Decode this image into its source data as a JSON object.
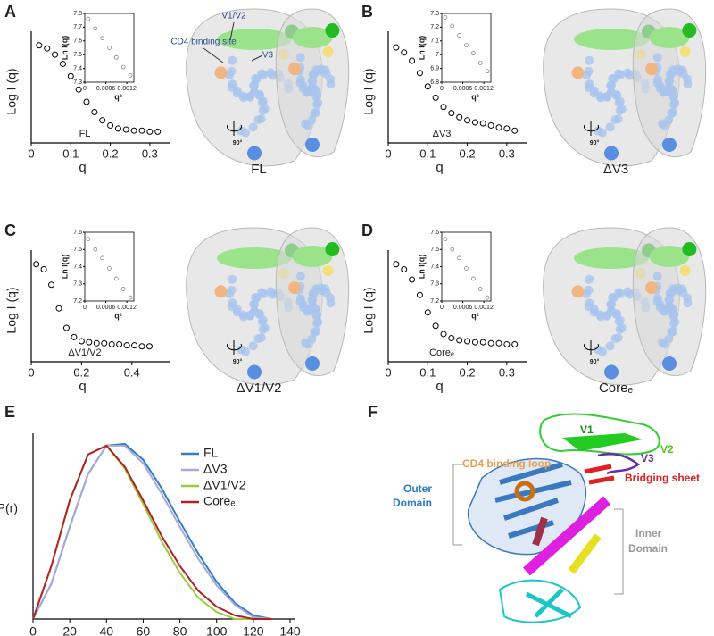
{
  "chart_data": [
    {
      "type": "scatter",
      "panel": "A",
      "x_label": "q",
      "y_label": "Log I (q)",
      "sample_label": "FL",
      "model_label": "FL",
      "rotation_label": "90°",
      "annotations": [
        "CD4 binding site",
        "V1/V2",
        "V3"
      ],
      "x": [
        0.02,
        0.04,
        0.06,
        0.08,
        0.1,
        0.12,
        0.14,
        0.16,
        0.18,
        0.2,
        0.22,
        0.24,
        0.26,
        0.28,
        0.3,
        0.32
      ],
      "values": [
        0.95,
        0.92,
        0.86,
        0.77,
        0.65,
        0.52,
        0.4,
        0.3,
        0.22,
        0.17,
        0.14,
        0.13,
        0.12,
        0.12,
        0.11,
        0.11
      ],
      "xlim": [
        0,
        0.35
      ],
      "xticks": [
        0,
        0.1,
        0.2,
        0.3
      ],
      "ylim": [
        0,
        1
      ],
      "inset": {
        "x_label": "q²",
        "y_label": "Ln I(q)",
        "x": [
          0.0001,
          0.0003,
          0.0005,
          0.0007,
          0.0009,
          0.0011,
          0.0013
        ],
        "values": [
          7.76,
          7.69,
          7.62,
          7.55,
          7.48,
          7.41,
          7.35
        ],
        "xlim": [
          0,
          0.0014
        ],
        "xticks": [
          0,
          0.0006,
          0.0012
        ],
        "ylim": [
          7.3,
          7.8
        ],
        "yticks": [
          7.3,
          7.4,
          7.5,
          7.6,
          7.7,
          7.8
        ]
      }
    },
    {
      "type": "scatter",
      "panel": "B",
      "x_label": "q",
      "y_label": "Log I (q)",
      "sample_label": "ΔV3",
      "model_label": "ΔV3",
      "rotation_label": "90°",
      "x": [
        0.02,
        0.04,
        0.06,
        0.08,
        0.1,
        0.12,
        0.14,
        0.16,
        0.18,
        0.2,
        0.22,
        0.24,
        0.26,
        0.28,
        0.3,
        0.32
      ],
      "values": [
        0.93,
        0.88,
        0.8,
        0.68,
        0.55,
        0.44,
        0.35,
        0.29,
        0.25,
        0.22,
        0.2,
        0.19,
        0.17,
        0.15,
        0.14,
        0.12
      ],
      "xlim": [
        0,
        0.35
      ],
      "xticks": [
        0,
        0.1,
        0.2,
        0.3
      ],
      "ylim": [
        0,
        1
      ],
      "inset": {
        "x_label": "q²",
        "y_label": "Ln I(q)",
        "x": [
          0.0001,
          0.0003,
          0.0005,
          0.0007,
          0.0009,
          0.0011,
          0.0013
        ],
        "values": [
          7.27,
          7.21,
          7.14,
          7.07,
          7.01,
          6.94,
          6.88
        ],
        "xlim": [
          0,
          0.0014
        ],
        "xticks": [
          0,
          0.0006,
          0.0012
        ],
        "ylim": [
          6.8,
          7.3
        ],
        "yticks": [
          6.8,
          6.9,
          7,
          7.1,
          7.2,
          7.3
        ]
      }
    },
    {
      "type": "scatter",
      "panel": "C",
      "x_label": "q",
      "y_label": "Log I (q)",
      "sample_label": "ΔV1/V2",
      "model_label": "ΔV1/V2",
      "rotation_label": "90°",
      "x": [
        0.02,
        0.05,
        0.08,
        0.11,
        0.14,
        0.17,
        0.2,
        0.23,
        0.26,
        0.29,
        0.32,
        0.35,
        0.38,
        0.41,
        0.44,
        0.47
      ],
      "values": [
        0.95,
        0.9,
        0.75,
        0.52,
        0.33,
        0.24,
        0.2,
        0.19,
        0.18,
        0.18,
        0.17,
        0.17,
        0.16,
        0.16,
        0.15,
        0.15
      ],
      "xlim": [
        0,
        0.55
      ],
      "xticks": [
        0,
        0.2,
        0.4
      ],
      "ylim": [
        0,
        1
      ],
      "inset": {
        "x_label": "q²",
        "y_label": "Ln I(q)",
        "x": [
          0.0001,
          0.0003,
          0.0005,
          0.0007,
          0.0009,
          0.0011,
          0.0013
        ],
        "values": [
          7.56,
          7.5,
          7.45,
          7.39,
          7.33,
          7.27,
          7.22
        ],
        "xlim": [
          0,
          0.0014
        ],
        "xticks": [
          0,
          0.0006,
          0.0012
        ],
        "ylim": [
          7.2,
          7.6
        ],
        "yticks": [
          7.2,
          7.3,
          7.4,
          7.5,
          7.6
        ]
      }
    },
    {
      "type": "scatter",
      "panel": "D",
      "x_label": "q",
      "y_label": "Log I (q)",
      "sample_label": "Coreₑ",
      "model_label": "Coreₑ",
      "rotation_label": "90°",
      "x": [
        0.02,
        0.04,
        0.06,
        0.08,
        0.1,
        0.12,
        0.14,
        0.16,
        0.18,
        0.2,
        0.22,
        0.24,
        0.26,
        0.28,
        0.3,
        0.32
      ],
      "values": [
        0.95,
        0.9,
        0.8,
        0.65,
        0.48,
        0.35,
        0.27,
        0.23,
        0.21,
        0.2,
        0.19,
        0.19,
        0.18,
        0.18,
        0.17,
        0.17
      ],
      "xlim": [
        0,
        0.35
      ],
      "xticks": [
        0,
        0.1,
        0.2,
        0.3
      ],
      "ylim": [
        0,
        1
      ],
      "inset": {
        "x_label": "q²",
        "y_label": "Ln I(q)",
        "x": [
          0.0001,
          0.0003,
          0.0005,
          0.0007,
          0.0009,
          0.0011,
          0.0013
        ],
        "values": [
          7.56,
          7.5,
          7.45,
          7.39,
          7.33,
          7.27,
          7.22
        ],
        "xlim": [
          0,
          0.0014
        ],
        "xticks": [
          0,
          0.0006,
          0.0012
        ],
        "ylim": [
          7.2,
          7.6
        ],
        "yticks": [
          7.2,
          7.3,
          7.4,
          7.5,
          7.6
        ]
      }
    },
    {
      "type": "line",
      "panel": "E",
      "y_label": "P(r)",
      "x": [
        0,
        10,
        20,
        30,
        40,
        50,
        60,
        70,
        80,
        90,
        100,
        110,
        120,
        130
      ],
      "xlim": [
        0,
        140
      ],
      "xticks": [
        0,
        20,
        40,
        60,
        80,
        100,
        120,
        140
      ],
      "ylim": [
        0,
        1.05
      ],
      "series": [
        {
          "name": "FL",
          "color": "#2f7fc1",
          "values": [
            0,
            0.2,
            0.52,
            0.82,
            0.98,
            0.99,
            0.9,
            0.74,
            0.55,
            0.37,
            0.21,
            0.09,
            0.02,
            0
          ]
        },
        {
          "name": "ΔV3",
          "color": "#a9a9d6",
          "values": [
            0,
            0.2,
            0.52,
            0.82,
            0.98,
            0.98,
            0.88,
            0.71,
            0.52,
            0.34,
            0.19,
            0.08,
            0.01,
            0
          ]
        },
        {
          "name": "ΔV1/V2",
          "color": "#9acd3c",
          "values": [
            0,
            0.3,
            0.67,
            0.93,
            0.98,
            0.85,
            0.65,
            0.44,
            0.26,
            0.12,
            0.04,
            0,
            0,
            0
          ]
        },
        {
          "name": "Coreₑ",
          "color": "#b22222",
          "values": [
            0,
            0.3,
            0.67,
            0.93,
            0.98,
            0.86,
            0.67,
            0.47,
            0.3,
            0.16,
            0.07,
            0.02,
            0,
            0
          ]
        }
      ]
    }
  ],
  "structure": {
    "panel": "F",
    "v1": "V1",
    "v2": "V2",
    "v3": "V3",
    "cd4_loop": "CD4 binding loop",
    "bridging": "Bridging sheet",
    "outer": [
      "Outer",
      "Domain"
    ],
    "inner": [
      "Inner",
      "Domain"
    ]
  }
}
